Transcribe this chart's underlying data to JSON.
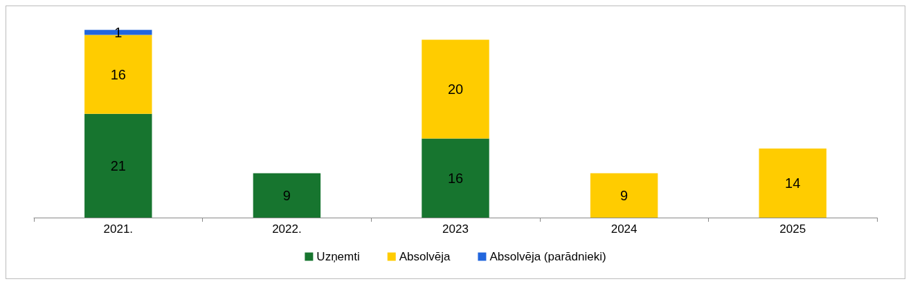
{
  "chart_data": {
    "type": "bar",
    "stacked": true,
    "data_labels": true,
    "legend": "bottom",
    "categories": [
      "2021.",
      "2022.",
      "2023",
      "2024",
      "2025"
    ],
    "series": [
      {
        "name": "Uzņemti",
        "color": "#17752f",
        "values": [
          21,
          9,
          16,
          null,
          null
        ]
      },
      {
        "name": "Absolvēja",
        "color": "#ffcc00",
        "values": [
          16,
          null,
          20,
          9,
          14
        ]
      },
      {
        "name": "Absolvēja (parādnieki)",
        "color": "#2266dd",
        "values": [
          1,
          null,
          null,
          null,
          null
        ]
      }
    ]
  }
}
